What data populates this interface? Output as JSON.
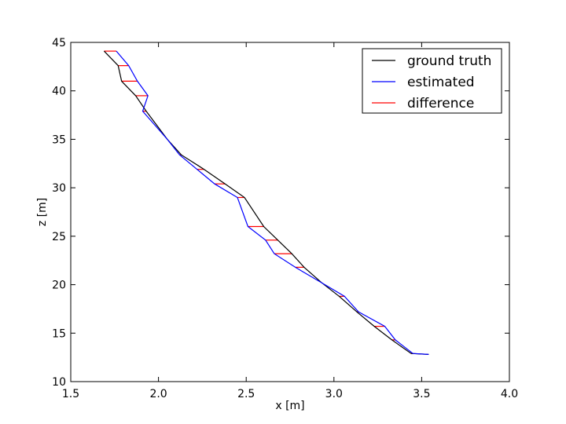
{
  "chart_data": {
    "type": "line",
    "xlabel": "x [m]",
    "ylabel": "z [m]",
    "xlim": [
      1.5,
      4.0
    ],
    "ylim": [
      10,
      45
    ],
    "xticks": [
      "1.5",
      "2.0",
      "2.5",
      "3.0",
      "3.5",
      "4.0"
    ],
    "yticks": [
      "10",
      "15",
      "20",
      "25",
      "30",
      "35",
      "40",
      "45"
    ],
    "legend_position": "top-right",
    "series": [
      {
        "name": "ground truth",
        "color": "#000000",
        "x": [
          1.69,
          1.77,
          1.79,
          1.87,
          1.93,
          2.05,
          2.13,
          2.26,
          2.38,
          2.49,
          2.6,
          2.68,
          2.76,
          2.83,
          2.93,
          3.03,
          3.13,
          3.23,
          3.33,
          3.44,
          3.54
        ],
        "z": [
          44.1,
          42.6,
          41.0,
          39.5,
          37.9,
          35.0,
          33.4,
          31.9,
          30.4,
          29.0,
          26.0,
          24.6,
          23.2,
          21.8,
          20.2,
          18.8,
          17.2,
          15.7,
          14.3,
          12.9,
          12.8
        ]
      },
      {
        "name": "estimated",
        "color": "#0000ff",
        "x": [
          1.76,
          1.83,
          1.88,
          1.94,
          1.91,
          2.05,
          2.12,
          2.22,
          2.32,
          2.45,
          2.51,
          2.61,
          2.66,
          2.78,
          2.93,
          3.06,
          3.14,
          3.29,
          3.35,
          3.45,
          3.54
        ],
        "z": [
          44.1,
          42.6,
          41.0,
          39.5,
          37.9,
          35.0,
          33.4,
          31.9,
          30.4,
          29.0,
          26.0,
          24.6,
          23.2,
          21.8,
          20.2,
          18.8,
          17.2,
          15.7,
          14.3,
          12.9,
          12.8
        ]
      },
      {
        "name": "difference",
        "color": "#ff0000"
      }
    ]
  }
}
